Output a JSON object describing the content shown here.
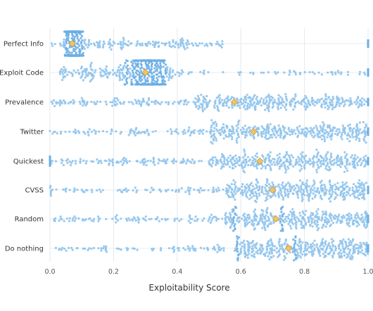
{
  "chart_data": {
    "type": "scatter",
    "subtype": "beeswarm",
    "xlabel": "Exploitability Score",
    "xlim": [
      0.0,
      1.0
    ],
    "xticks": [
      "0.0",
      "0.2",
      "0.4",
      "0.6",
      "0.8",
      "1.0"
    ],
    "grid": true,
    "categories": [
      "Perfect Info",
      "Exploit Code",
      "Prevalence",
      "Twitter",
      "Quickest",
      "CVSS",
      "Random",
      "Do nothing"
    ],
    "medians": [
      0.07,
      0.3,
      0.58,
      0.64,
      0.66,
      0.7,
      0.71,
      0.75
    ],
    "colors": {
      "points": "#8ec3ec",
      "dense_points": "#6aaee6",
      "median_marker": "#f2c464",
      "median_stroke": "#c89a3c",
      "grid": "#e3e8ee"
    }
  }
}
